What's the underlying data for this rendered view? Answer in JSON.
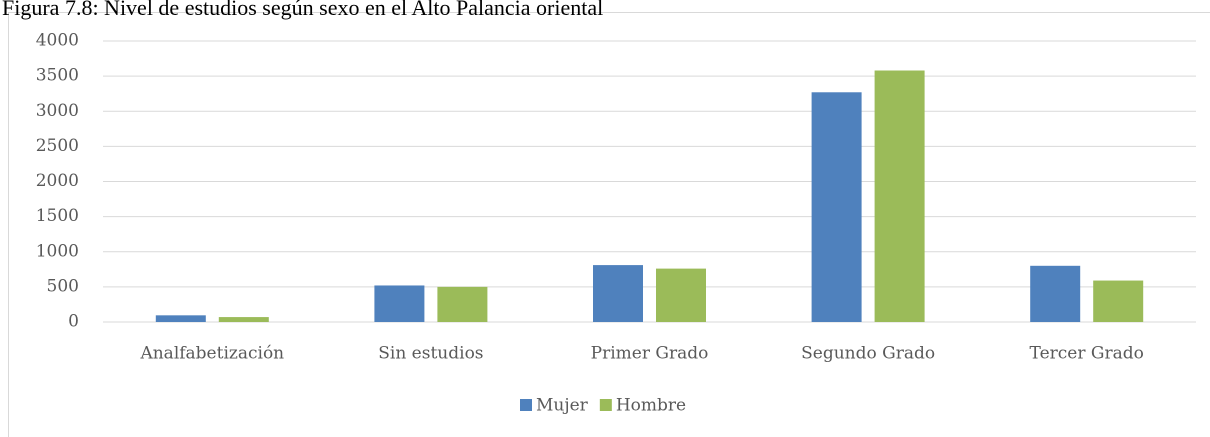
{
  "chart_data": {
    "type": "bar",
    "title": "Figura 7.8: Nivel de estudios según sexo en el Alto Palancia oriental",
    "categories": [
      "Analfabetización",
      "Sin estudios",
      "Primer Grado",
      "Segundo Grado",
      "Tercer Grado"
    ],
    "series": [
      {
        "name": "Mujer",
        "color": "#4f81bd",
        "values": [
          95,
          520,
          810,
          3270,
          800
        ]
      },
      {
        "name": "Hombre",
        "color": "#9bbb59",
        "values": [
          70,
          500,
          760,
          3580,
          590
        ]
      }
    ],
    "ylim": [
      0,
      4000
    ],
    "yticks": [
      0,
      500,
      1000,
      1500,
      2000,
      2500,
      3000,
      3500,
      4000
    ],
    "grid": true,
    "legend": "bottom"
  }
}
